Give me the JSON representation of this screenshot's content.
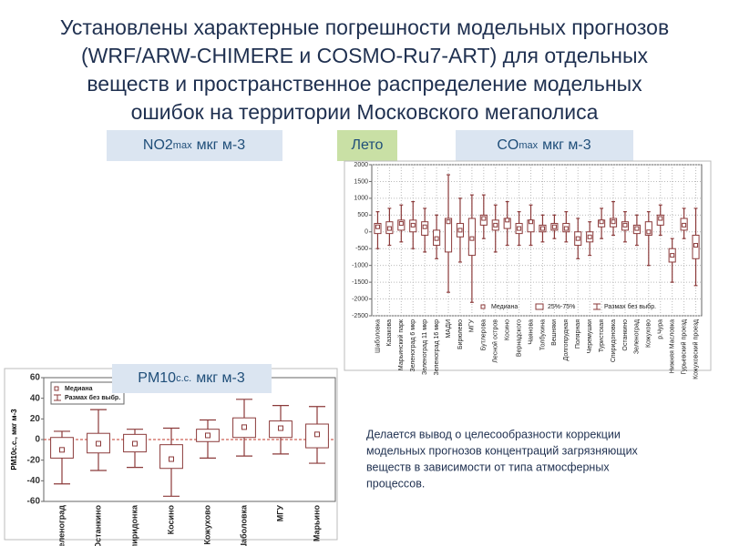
{
  "title_lines": [
    "Установлены характерные погрешности модельных прогнозов",
    "(WRF/ARW-CHIMERE и COSMO-Ru7-ART) для отдельных",
    "веществ и пространственное распределение модельных",
    "ошибок на территории Московского мегаполиса"
  ],
  "season_label": "Лето",
  "panel_labels": [
    {
      "main": "NO2",
      "sub": "max",
      "unit": "мкг м-3"
    },
    {
      "main": "CO",
      "sub": "max",
      "unit": "мкг м-3"
    },
    {
      "main": "PM10",
      "sub": "с.с.",
      "unit": "мкг м-3"
    }
  ],
  "conclusion": [
    "Делается вывод о целесообразности коррекции",
    "модельных прогнозов концентраций загрязняющих",
    "веществ в зависимости от типа атмосферных",
    "процессов."
  ],
  "chart_data": [
    {
      "type": "box",
      "color": "#8b3a3a",
      "grid": true,
      "zero_line": false,
      "ylim": [
        -2500,
        2000
      ],
      "yticks": [
        -2500,
        -2000,
        -1500,
        -1000,
        -500,
        0,
        500,
        1000,
        1500,
        2000
      ],
      "legend": [
        {
          "label": "Медиана",
          "symbol": "median"
        },
        {
          "label": "25%-75%",
          "symbol": "box"
        },
        {
          "label": "Размах без выбр.",
          "symbol": "range"
        }
      ],
      "categories": [
        "Шаболовка",
        "Казакова",
        "Марьинский парк",
        "Зеленоград 6 мкр",
        "Зеленоград 11 мкр",
        "Зеленоград 16 мкр",
        "МАДИ",
        "Бирюлево",
        "МГУ",
        "Бутлерова",
        "Лесной остров",
        "Косино",
        "Вернадского",
        "Чаянова",
        "Толбухина",
        "Вешняки",
        "Долгопрудная",
        "Полярная",
        "Черемушки",
        "Туристская",
        "Спиридоновка",
        "Останкино",
        "Зеленоград",
        "Кожухово",
        "р.Чура",
        "Нижняя Масловка",
        "Гурьевский проезд",
        "Кожуховский проезд"
      ],
      "boxes": [
        {
          "min": -500,
          "q1": -50,
          "median": 150,
          "q3": 250,
          "max": 600
        },
        {
          "min": -400,
          "q1": -50,
          "median": 100,
          "q3": 300,
          "max": 700
        },
        {
          "min": -300,
          "q1": 50,
          "median": 250,
          "q3": 350,
          "max": 800
        },
        {
          "min": -500,
          "q1": 0,
          "median": 200,
          "q3": 350,
          "max": 900
        },
        {
          "min": -600,
          "q1": -100,
          "median": 150,
          "q3": 300,
          "max": 700
        },
        {
          "min": -800,
          "q1": -400,
          "median": -200,
          "q3": 50,
          "max": 500
        },
        {
          "min": -1800,
          "q1": -600,
          "median": 300,
          "q3": 400,
          "max": 1700
        },
        {
          "min": -900,
          "q1": -150,
          "median": 50,
          "q3": 250,
          "max": 1000
        },
        {
          "min": -2100,
          "q1": -700,
          "median": -200,
          "q3": 400,
          "max": 1100
        },
        {
          "min": -200,
          "q1": 200,
          "median": 400,
          "q3": 500,
          "max": 1100
        },
        {
          "min": -600,
          "q1": 50,
          "median": 200,
          "q3": 350,
          "max": 800
        },
        {
          "min": -400,
          "q1": 100,
          "median": 350,
          "q3": 400,
          "max": 900
        },
        {
          "min": -400,
          "q1": -50,
          "median": 100,
          "q3": 250,
          "max": 600
        },
        {
          "min": -400,
          "q1": 0,
          "median": 300,
          "q3": 350,
          "max": 800
        },
        {
          "min": -300,
          "q1": 0,
          "median": 100,
          "q3": 200,
          "max": 500
        },
        {
          "min": -200,
          "q1": 50,
          "median": 150,
          "q3": 250,
          "max": 500
        },
        {
          "min": -300,
          "q1": 0,
          "median": 100,
          "q3": 250,
          "max": 600
        },
        {
          "min": -800,
          "q1": -400,
          "median": -200,
          "q3": 0,
          "max": 400
        },
        {
          "min": -700,
          "q1": -300,
          "median": -150,
          "q3": 0,
          "max": 300
        },
        {
          "min": -200,
          "q1": 150,
          "median": 300,
          "q3": 350,
          "max": 700
        },
        {
          "min": -100,
          "q1": 150,
          "median": 300,
          "q3": 400,
          "max": 900
        },
        {
          "min": -300,
          "q1": 50,
          "median": 200,
          "q3": 300,
          "max": 600
        },
        {
          "min": -400,
          "q1": -50,
          "median": 100,
          "q3": 200,
          "max": 500
        },
        {
          "min": -1000,
          "q1": -100,
          "median": 0,
          "q3": 300,
          "max": 600
        },
        {
          "min": -100,
          "q1": 200,
          "median": 400,
          "q3": 500,
          "max": 800
        },
        {
          "min": -1500,
          "q1": -900,
          "median": -700,
          "q3": -500,
          "max": -200
        },
        {
          "min": -200,
          "q1": 50,
          "median": 200,
          "q3": 400,
          "max": 700
        },
        {
          "min": -1600,
          "q1": -800,
          "median": -400,
          "q3": -100,
          "max": 700
        }
      ]
    },
    {
      "type": "box",
      "color": "#8b3a3a",
      "grid": false,
      "zero_line": true,
      "ylabel": "PM10с.с., мкг м-3",
      "ylim": [
        -60,
        60
      ],
      "yticks": [
        -60,
        -40,
        -20,
        0,
        20,
        40,
        60
      ],
      "legend": [
        {
          "label": "Медиана",
          "symbol": "median"
        },
        {
          "label": "Размах без выбр.",
          "symbol": "range"
        }
      ],
      "categories": [
        "Зеленоград",
        "Останкино",
        "Спиридонка",
        "Косино",
        "Кожухово",
        "Шаболовка",
        "МГУ",
        "Марьино"
      ],
      "boxes": [
        {
          "min": -43,
          "q1": -18,
          "median": -10,
          "q3": 2,
          "max": 8
        },
        {
          "min": -30,
          "q1": -13,
          "median": -4,
          "q3": 6,
          "max": 29
        },
        {
          "min": -27,
          "q1": -12,
          "median": -4,
          "q3": 5,
          "max": 10
        },
        {
          "min": -55,
          "q1": -28,
          "median": -19,
          "q3": -5,
          "max": 11
        },
        {
          "min": -18,
          "q1": -2,
          "median": 4,
          "q3": 10,
          "max": 19
        },
        {
          "min": -16,
          "q1": 2,
          "median": 12,
          "q3": 21,
          "max": 39
        },
        {
          "min": -14,
          "q1": 2,
          "median": 11,
          "q3": 18,
          "max": 33
        },
        {
          "min": -23,
          "q1": -8,
          "median": 5,
          "q3": 15,
          "max": 32
        }
      ]
    }
  ]
}
